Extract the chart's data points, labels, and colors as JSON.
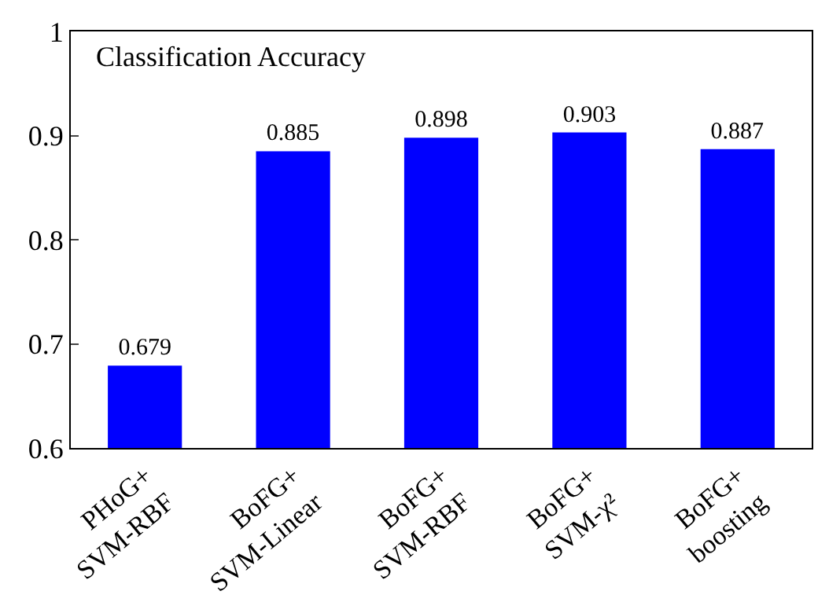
{
  "chart_data": {
    "type": "bar",
    "title": "Classification Accuracy",
    "categories": [
      "PHoG+\nSVM-RBF",
      "BoFG+\nSVM-Linear",
      "BoFG+\nSVM-RBF",
      "BoFG+\nSVM-χ²",
      "BoFG+\nboosting"
    ],
    "values": [
      0.679,
      0.885,
      0.898,
      0.903,
      0.887
    ],
    "color": "#0000ff",
    "ylim": [
      0.6,
      1
    ],
    "yticks": [
      0.6,
      0.7,
      0.8,
      0.9,
      {
        "value": 1,
        "label": "1"
      }
    ],
    "data_labels": true
  }
}
